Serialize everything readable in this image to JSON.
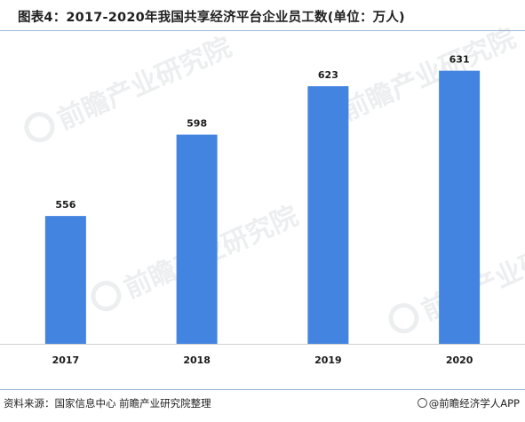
{
  "title": "图表4：2017-2020年我国共享经济平台企业员工数(单位：万人)",
  "watermark_text": "前瞻产业研究院",
  "footer": {
    "source": "资料来源：国家信息中心 前瞻产业研究院整理",
    "brand": "@前瞻经济学人APP"
  },
  "colors": {
    "bar": "#4384e0",
    "divider": "#9fb8d8",
    "baseline": "#d0d0d0"
  },
  "chart_data": {
    "type": "bar",
    "categories": [
      "2017",
      "2018",
      "2019",
      "2020"
    ],
    "values": [
      556,
      598,
      623,
      631
    ],
    "data_labels": [
      "556",
      "598",
      "623",
      "631"
    ],
    "ylim": [
      490,
      640
    ],
    "grid": false,
    "legend": "none",
    "xlabel": "",
    "ylabel": ""
  }
}
